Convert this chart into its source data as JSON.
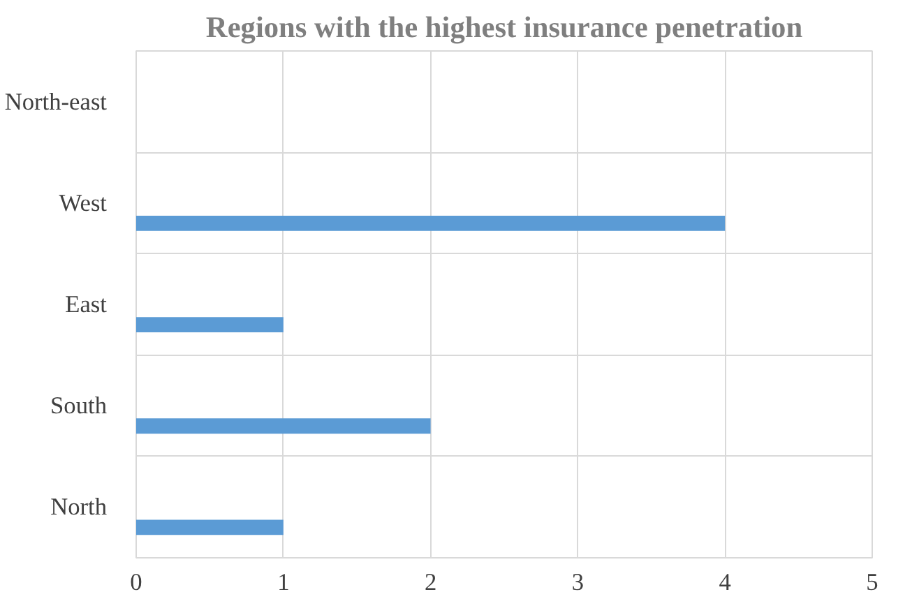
{
  "chart_data": {
    "type": "bar",
    "orientation": "horizontal",
    "title": "Regions with the highest insurance penetration",
    "categories": [
      "North-east",
      "West",
      "East",
      "South",
      "North"
    ],
    "values": [
      0,
      4,
      1,
      2,
      1
    ],
    "color": "#5b9bd5",
    "xlim": [
      0,
      5
    ],
    "xticks": [
      0,
      1,
      2,
      3,
      4,
      5
    ],
    "grid": true
  }
}
